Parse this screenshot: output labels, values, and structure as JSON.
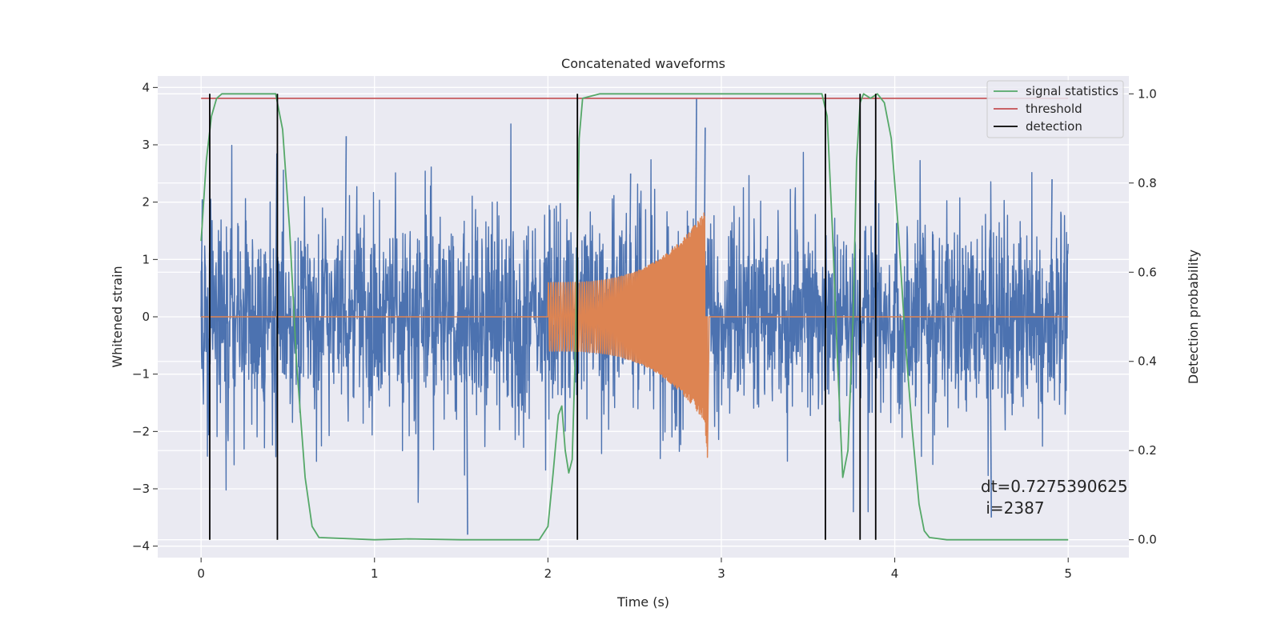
{
  "chart_data": {
    "type": "line",
    "title": "Concatenated waveforms",
    "xlabel": "Time (s)",
    "ylabel_left": "Whitened strain",
    "ylabel_right": "Detection probability",
    "xlim": [
      -0.25,
      5.35
    ],
    "ylim_left": [
      -4.2,
      4.2
    ],
    "ylim_right": [
      -0.04,
      1.04
    ],
    "x_ticks": [
      "0",
      "1",
      "2",
      "3",
      "4",
      "5"
    ],
    "y_ticks_left": [
      "4",
      "3",
      "2",
      "1",
      "0",
      "−1",
      "−2",
      "−3",
      "−4"
    ],
    "y_ticks_right": [
      "1.0",
      "0.8",
      "0.6",
      "0.4",
      "0.2",
      "0.0"
    ],
    "grid": true,
    "legend_position": "top-right",
    "series": [
      {
        "name": "",
        "axis": "left",
        "kind": "noisy strain",
        "x_range": [
          0,
          5
        ],
        "envelope_abs": 2.4,
        "peak_points": [
          [
            0.0,
            2.05
          ],
          [
            0.43,
            2.85
          ],
          [
            0.83,
            3.15
          ],
          [
            1.53,
            -3.8
          ],
          [
            2.47,
            2.5
          ],
          [
            2.85,
            3.8
          ],
          [
            2.9,
            3.3
          ],
          [
            4.55,
            -3.5
          ],
          [
            4.9,
            2.4
          ]
        ]
      },
      {
        "name": "",
        "axis": "left",
        "kind": "chirp waveform",
        "x_range": [
          2.0,
          2.92
        ],
        "start_amplitude": 0.6,
        "peak_amplitude": 1.9,
        "min_value": -2.45
      },
      {
        "name": "signal statistics",
        "axis": "right",
        "x": [
          0.0,
          0.03,
          0.06,
          0.09,
          0.12,
          0.2,
          0.43,
          0.47,
          0.51,
          0.55,
          0.6,
          0.64,
          0.68,
          1.0,
          1.2,
          1.5,
          1.95,
          2.0,
          2.03,
          2.06,
          2.08,
          2.1,
          2.12,
          2.14,
          2.16,
          2.18,
          2.2,
          2.3,
          2.7,
          3.0,
          3.58,
          3.61,
          3.64,
          3.67,
          3.7,
          3.73,
          3.76,
          3.78,
          3.8,
          3.82,
          3.86,
          3.9,
          3.94,
          3.98,
          4.02,
          4.06,
          4.1,
          4.14,
          4.17,
          4.2,
          4.3,
          5.0
        ],
        "values": [
          0.67,
          0.85,
          0.95,
          0.99,
          1.0,
          1.0,
          1.0,
          0.92,
          0.7,
          0.4,
          0.14,
          0.03,
          0.005,
          0.0,
          0.002,
          0.0,
          0.0,
          0.03,
          0.15,
          0.28,
          0.3,
          0.2,
          0.15,
          0.18,
          0.45,
          0.9,
          0.99,
          1.0,
          1.0,
          1.0,
          1.0,
          0.95,
          0.7,
          0.4,
          0.14,
          0.2,
          0.5,
          0.85,
          0.98,
          1.0,
          0.99,
          1.0,
          0.98,
          0.9,
          0.7,
          0.45,
          0.25,
          0.08,
          0.02,
          0.005,
          0.0,
          0.0
        ]
      },
      {
        "name": "threshold",
        "axis": "right",
        "x": [
          0.0,
          5.0
        ],
        "values": [
          0.99,
          0.99
        ]
      },
      {
        "name": "detection",
        "axis": "right",
        "kind": "vertical lines",
        "x": [
          0.05,
          0.44,
          2.17,
          3.6,
          3.8,
          3.89
        ],
        "y_range": [
          0.0,
          1.0
        ]
      }
    ],
    "annotation": [
      "dt=0.7275390625",
      " i=2387"
    ],
    "colors": {
      "noise": "#4c72b0",
      "chirp": "#dd8452",
      "signal_statistics": "#55a868",
      "threshold": "#c44e52",
      "detection": "#000000",
      "background": "#eaeaf2",
      "grid": "#ffffff"
    }
  }
}
